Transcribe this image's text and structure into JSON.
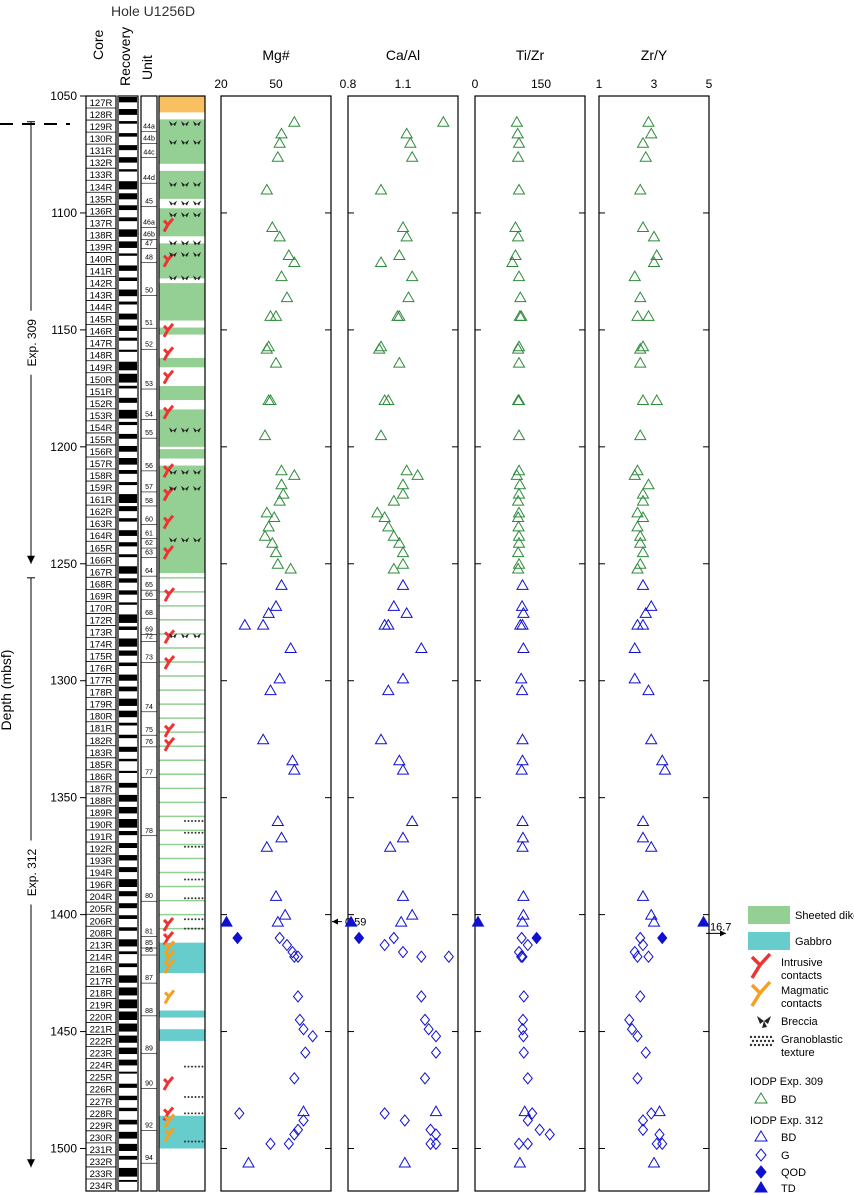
{
  "title": "Hole U1256D",
  "column_headers": {
    "core": "Core",
    "recovery": "Recovery",
    "unit": "Unit"
  },
  "y_axis": {
    "label": "Depth (mbsf)",
    "min": 1050,
    "max": 1500,
    "ticks": [
      "1050",
      "1100",
      "1150",
      "1200",
      "1250",
      "1300",
      "1350",
      "1400",
      "1450",
      "1500"
    ]
  },
  "expeditions": [
    {
      "label": "Exp. 309",
      "from": 1061,
      "to": 1250
    },
    {
      "label": "Exp. 312",
      "from": 1256,
      "to": 1508
    }
  ],
  "core_labels": [
    "127R",
    "128R",
    "129R",
    "130R",
    "131R",
    "132R",
    "133R",
    "134R",
    "135R",
    "136R",
    "137R",
    "138R",
    "139R",
    "140R",
    "141R",
    "142R",
    "143R",
    "144R",
    "145R",
    "146R",
    "147R",
    "148R",
    "149R",
    "150R",
    "151R",
    "152R",
    "153R",
    "154R",
    "155R",
    "156R",
    "157R",
    "158R",
    "159R",
    "161R",
    "162R",
    "163R",
    "164R",
    "165R",
    "166R",
    "167R",
    "168R",
    "169R",
    "170R",
    "172R",
    "173R",
    "174R",
    "175R",
    "176R",
    "177R",
    "178R",
    "179R",
    "180R",
    "181R",
    "182R",
    "183R",
    "185R",
    "186R",
    "187R",
    "188R",
    "189R",
    "190R",
    "191R",
    "192R",
    "193R",
    "194R",
    "196R",
    "204R",
    "205R",
    "206R",
    "208R",
    "213R",
    "214R",
    "216R",
    "217R",
    "218R",
    "219R",
    "220R",
    "221R",
    "222R",
    "223R",
    "224R",
    "225R",
    "226R",
    "227R",
    "228R",
    "229R",
    "230R",
    "231R",
    "232R",
    "233R",
    "234R"
  ],
  "unit_labels": [
    {
      "label": "44a",
      "d": 1064
    },
    {
      "label": "44b",
      "d": 1069
    },
    {
      "label": "44c",
      "d": 1075
    },
    {
      "label": "44d",
      "d": 1086
    },
    {
      "label": "45",
      "d": 1096
    },
    {
      "label": "46a",
      "d": 1105
    },
    {
      "label": "46b",
      "d": 1110
    },
    {
      "label": "47",
      "d": 1114
    },
    {
      "label": "48",
      "d": 1120
    },
    {
      "label": "50",
      "d": 1134
    },
    {
      "label": "51",
      "d": 1148
    },
    {
      "label": "52",
      "d": 1157
    },
    {
      "label": "53",
      "d": 1174
    },
    {
      "label": "54",
      "d": 1187
    },
    {
      "label": "55",
      "d": 1195
    },
    {
      "label": "56",
      "d": 1209
    },
    {
      "label": "57",
      "d": 1218
    },
    {
      "label": "58",
      "d": 1224
    },
    {
      "label": "60",
      "d": 1232
    },
    {
      "label": "61",
      "d": 1238
    },
    {
      "label": "62",
      "d": 1242
    },
    {
      "label": "63",
      "d": 1246
    },
    {
      "label": "64",
      "d": 1254
    },
    {
      "label": "65",
      "d": 1260
    },
    {
      "label": "66",
      "d": 1264
    },
    {
      "label": "68",
      "d": 1272
    },
    {
      "label": "69",
      "d": 1279
    },
    {
      "label": "72",
      "d": 1282
    },
    {
      "label": "73",
      "d": 1291
    },
    {
      "label": "74",
      "d": 1312
    },
    {
      "label": "75",
      "d": 1322
    },
    {
      "label": "76",
      "d": 1327
    },
    {
      "label": "77",
      "d": 1340
    },
    {
      "label": "78",
      "d": 1365
    },
    {
      "label": "80",
      "d": 1393
    },
    {
      "label": "81",
      "d": 1408
    },
    {
      "label": "85",
      "d": 1413
    },
    {
      "label": "86",
      "d": 1416
    },
    {
      "label": "87",
      "d": 1428
    },
    {
      "label": "88",
      "d": 1442
    },
    {
      "label": "89",
      "d": 1458
    },
    {
      "label": "90",
      "d": 1473
    },
    {
      "label": "92",
      "d": 1491
    },
    {
      "label": "94",
      "d": 1505
    }
  ],
  "lithology_blocks": [
    {
      "from": 1050,
      "to": 1057,
      "type": "orange"
    },
    {
      "from": 1060,
      "to": 1079,
      "type": "green"
    },
    {
      "from": 1082,
      "to": 1094,
      "type": "green"
    },
    {
      "from": 1098,
      "to": 1110,
      "type": "green"
    },
    {
      "from": 1113,
      "to": 1128,
      "type": "green"
    },
    {
      "from": 1130,
      "to": 1146,
      "type": "green"
    },
    {
      "from": 1149,
      "to": 1152,
      "type": "green"
    },
    {
      "from": 1162,
      "to": 1166,
      "type": "green"
    },
    {
      "from": 1174,
      "to": 1180,
      "type": "green"
    },
    {
      "from": 1184,
      "to": 1200,
      "type": "green"
    },
    {
      "from": 1201,
      "to": 1205,
      "type": "green"
    },
    {
      "from": 1208,
      "to": 1254,
      "type": "green"
    },
    {
      "from": 1412,
      "to": 1425,
      "type": "cyan"
    },
    {
      "from": 1441,
      "to": 1444,
      "type": "cyan"
    },
    {
      "from": 1449,
      "to": 1454,
      "type": "cyan"
    },
    {
      "from": 1486,
      "to": 1500,
      "type": "cyan"
    }
  ],
  "panels": [
    {
      "title": "Mg#",
      "min": 20,
      "max": 80,
      "ticks": [
        {
          "v": 20,
          "l": "20"
        },
        {
          "v": 50,
          "l": "50"
        }
      ],
      "off": {
        "d": 1403,
        "label": "0.59",
        "side": "left"
      }
    },
    {
      "title": "Ca/Al",
      "min": 0.8,
      "max": 1.4,
      "ticks": [
        {
          "v": 0.8,
          "l": "0.8"
        },
        {
          "v": 1.1,
          "l": "1.1"
        }
      ]
    },
    {
      "title": "Ti/Zr",
      "min": 0,
      "max": 250,
      "ticks": [
        {
          "v": 0,
          "l": "0"
        },
        {
          "v": 150,
          "l": "150"
        }
      ]
    },
    {
      "title": "Zr/Y",
      "min": 1,
      "max": 5,
      "ticks": [
        {
          "v": 1,
          "l": "1"
        },
        {
          "v": 3,
          "l": "3"
        },
        {
          "v": 5,
          "l": "5"
        }
      ],
      "off": {
        "d": 1408,
        "label": "16.7",
        "side": "right"
      }
    }
  ],
  "legend": {
    "sheeted_dike": "Sheeted dike",
    "gabbro": "Gabbro",
    "intrusive": "Intrusive\ncontacts",
    "magmatic": "Magmatic\ncontacts",
    "breccia": "Breccia",
    "granoblastic": "Granoblastic\ntexture",
    "exp309_title": "IODP Exp. 309",
    "exp309_bd": "BD",
    "exp312_title": "IODP Exp. 312",
    "exp312_bd": "BD",
    "exp312_g": "G",
    "exp312_qod": "QOD",
    "exp312_td": "TD"
  },
  "colors": {
    "exp309": "#2e8b3a",
    "exp312": "#1010d0",
    "sheeted_dike": "#94cf94",
    "gabbro": "#66cccc",
    "intrusive": "#ee3333",
    "magmatic": "#f5a020",
    "orange_unit": "#f8c060"
  },
  "chart_data": {
    "type": "scatter",
    "y_axis": "Depth (mbsf)",
    "ylim": [
      1050,
      1500
    ],
    "series": [
      {
        "name": "IODP Exp. 309 BD",
        "marker": "triangle-open",
        "color": "#2e8b3a",
        "points": [
          [
            1061,
            60,
            1.32,
            95,
            2.8
          ],
          [
            1066,
            53,
            1.12,
            97,
            2.9
          ],
          [
            1070,
            52,
            1.14,
            100,
            2.6
          ],
          [
            1076,
            51,
            1.15,
            98,
            2.7
          ],
          [
            1090,
            45,
            0.98,
            100,
            2.5
          ],
          [
            1106,
            48,
            1.1,
            92,
            2.6
          ],
          [
            1110,
            52,
            1.12,
            98,
            3.0
          ],
          [
            1118,
            57,
            1.08,
            92,
            3.1
          ],
          [
            1121,
            60,
            0.98,
            85,
            3.0
          ],
          [
            1127,
            53,
            1.15,
            100,
            2.3
          ],
          [
            1136,
            56,
            1.13,
            103,
            2.5
          ],
          [
            1144,
            50,
            1.08,
            105,
            2.8
          ],
          [
            1144,
            47,
            1.07,
            102,
            2.4
          ],
          [
            1157,
            46,
            0.98,
            100,
            2.6
          ],
          [
            1158,
            45,
            0.97,
            98,
            2.5
          ],
          [
            1164,
            50,
            1.08,
            100,
            2.5
          ],
          [
            1180,
            47,
            1.0,
            98,
            3.1
          ],
          [
            1180,
            46,
            1.02,
            100,
            2.6
          ],
          [
            1195,
            44,
            0.98,
            100,
            2.5
          ],
          [
            1210,
            53,
            1.12,
            100,
            2.4
          ],
          [
            1212,
            60,
            1.18,
            95,
            2.3
          ],
          [
            1216,
            53,
            1.1,
            102,
            2.8
          ],
          [
            1220,
            54,
            1.1,
            100,
            2.6
          ],
          [
            1223,
            52,
            1.05,
            98,
            2.6
          ],
          [
            1228,
            45,
            0.96,
            100,
            2.4
          ],
          [
            1230,
            49,
            1.0,
            98,
            2.6
          ],
          [
            1234,
            46,
            1.02,
            99,
            2.4
          ],
          [
            1238,
            44,
            1.05,
            100,
            2.5
          ],
          [
            1241,
            48,
            1.08,
            100,
            2.5
          ],
          [
            1245,
            50,
            1.1,
            98,
            2.6
          ],
          [
            1250,
            51,
            1.1,
            100,
            2.5
          ],
          [
            1252,
            58,
            1.05,
            98,
            2.4
          ]
        ]
      },
      {
        "name": "IODP Exp. 312 BD",
        "marker": "triangle-open",
        "color": "#1010d0",
        "points": [
          [
            1259,
            53,
            1.1,
            108,
            2.6
          ],
          [
            1268,
            50,
            1.05,
            107,
            2.9
          ],
          [
            1271,
            46,
            1.12,
            110,
            2.7
          ],
          [
            1276,
            33,
            1.02,
            103,
            2.6
          ],
          [
            1276,
            43,
            1.0,
            108,
            2.4
          ],
          [
            1286,
            58,
            1.2,
            110,
            2.3
          ],
          [
            1299,
            52,
            1.1,
            105,
            2.3
          ],
          [
            1304,
            47,
            1.02,
            107,
            2.8
          ],
          [
            1325,
            43,
            0.98,
            108,
            2.9
          ],
          [
            1334,
            59,
            1.08,
            108,
            3.3
          ],
          [
            1338,
            60,
            1.1,
            106,
            3.4
          ],
          [
            1360,
            51,
            1.15,
            108,
            2.6
          ],
          [
            1367,
            53,
            1.1,
            109,
            2.6
          ],
          [
            1371,
            45,
            1.03,
            108,
            2.9
          ],
          [
            1392,
            50,
            1.1,
            110,
            2.6
          ],
          [
            1400,
            55,
            1.15,
            110,
            2.9
          ],
          [
            1403,
            51,
            1.09,
            108,
            3.0
          ],
          [
            1484,
            65,
            1.28,
            113,
            3.2
          ],
          [
            1506,
            35,
            1.11,
            102,
            3.0
          ]
        ]
      },
      {
        "name": "IODP Exp. 312 G",
        "marker": "diamond-open",
        "color": "#1010d0",
        "points": [
          [
            1410,
            52,
            1.05,
            106,
            2.5
          ],
          [
            1413,
            56,
            1.0,
            120,
            2.6
          ],
          [
            1416,
            59,
            1.1,
            100,
            2.3
          ],
          [
            1418,
            60,
            1.2,
            105,
            2.4
          ],
          [
            1418,
            62,
            1.35,
            108,
            2.8
          ],
          [
            1435,
            62,
            1.2,
            111,
            2.5
          ],
          [
            1445,
            63,
            1.22,
            109,
            2.1
          ],
          [
            1449,
            65,
            1.24,
            108,
            2.2
          ],
          [
            1452,
            70,
            1.28,
            110,
            2.4
          ],
          [
            1459,
            66,
            1.28,
            111,
            2.7
          ],
          [
            1470,
            60,
            1.22,
            120,
            2.4
          ],
          [
            1485,
            30,
            1.0,
            130,
            2.9
          ],
          [
            1488,
            65,
            1.11,
            120,
            2.6
          ],
          [
            1492,
            62,
            1.25,
            147,
            2.6
          ],
          [
            1494,
            60,
            1.28,
            170,
            3.2
          ],
          [
            1498,
            57,
            1.25,
            100,
            3.1
          ],
          [
            1498,
            47,
            1.28,
            120,
            3.3
          ]
        ]
      },
      {
        "name": "IODP Exp. 312 QOD",
        "marker": "diamond-filled",
        "color": "#1010d0",
        "points": [
          [
            1410,
            29,
            0.86,
            140,
            3.3
          ]
        ]
      },
      {
        "name": "IODP Exp. 312 TD",
        "marker": "triangle-filled",
        "color": "#1010d0",
        "points": [
          [
            1403,
            23,
            0.8,
            2,
            4.8
          ]
        ]
      }
    ]
  }
}
